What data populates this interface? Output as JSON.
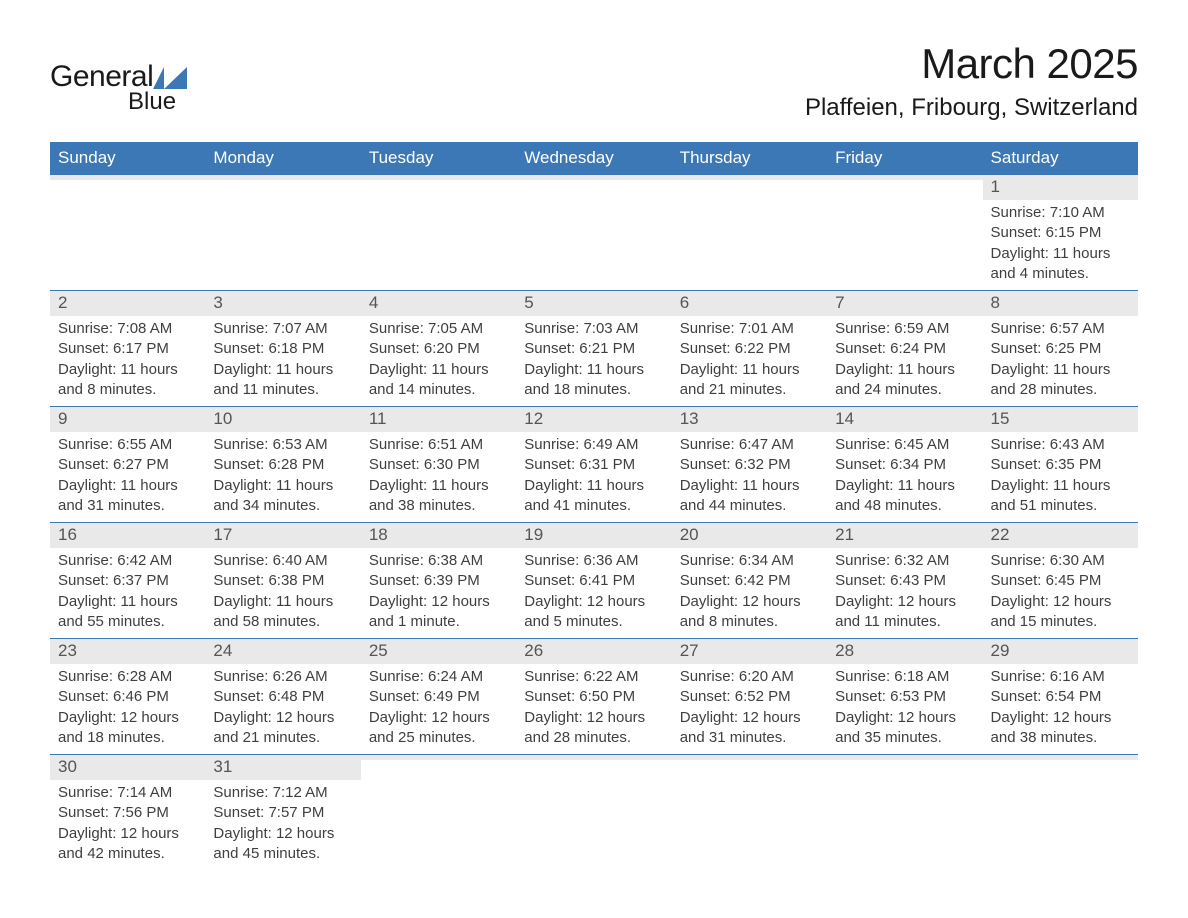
{
  "logo": {
    "word1": "General",
    "word2": "Blue",
    "triangle_color": "#3b78b5"
  },
  "title": "March 2025",
  "location": "Plaffeien, Fribourg, Switzerland",
  "colors": {
    "header_bg": "#3b78b5",
    "header_text": "#ffffff",
    "daynum_bg": "#e9e9e9",
    "body_bg": "#ffffff",
    "text": "#3f3f3f"
  },
  "weekday_labels": [
    "Sunday",
    "Monday",
    "Tuesday",
    "Wednesday",
    "Thursday",
    "Friday",
    "Saturday"
  ],
  "weeks": [
    [
      {
        "n": "",
        "sr": "",
        "ss": "",
        "dl": ""
      },
      {
        "n": "",
        "sr": "",
        "ss": "",
        "dl": ""
      },
      {
        "n": "",
        "sr": "",
        "ss": "",
        "dl": ""
      },
      {
        "n": "",
        "sr": "",
        "ss": "",
        "dl": ""
      },
      {
        "n": "",
        "sr": "",
        "ss": "",
        "dl": ""
      },
      {
        "n": "",
        "sr": "",
        "ss": "",
        "dl": ""
      },
      {
        "n": "1",
        "sr": "Sunrise: 7:10 AM",
        "ss": "Sunset: 6:15 PM",
        "dl": "Daylight: 11 hours and 4 minutes."
      }
    ],
    [
      {
        "n": "2",
        "sr": "Sunrise: 7:08 AM",
        "ss": "Sunset: 6:17 PM",
        "dl": "Daylight: 11 hours and 8 minutes."
      },
      {
        "n": "3",
        "sr": "Sunrise: 7:07 AM",
        "ss": "Sunset: 6:18 PM",
        "dl": "Daylight: 11 hours and 11 minutes."
      },
      {
        "n": "4",
        "sr": "Sunrise: 7:05 AM",
        "ss": "Sunset: 6:20 PM",
        "dl": "Daylight: 11 hours and 14 minutes."
      },
      {
        "n": "5",
        "sr": "Sunrise: 7:03 AM",
        "ss": "Sunset: 6:21 PM",
        "dl": "Daylight: 11 hours and 18 minutes."
      },
      {
        "n": "6",
        "sr": "Sunrise: 7:01 AM",
        "ss": "Sunset: 6:22 PM",
        "dl": "Daylight: 11 hours and 21 minutes."
      },
      {
        "n": "7",
        "sr": "Sunrise: 6:59 AM",
        "ss": "Sunset: 6:24 PM",
        "dl": "Daylight: 11 hours and 24 minutes."
      },
      {
        "n": "8",
        "sr": "Sunrise: 6:57 AM",
        "ss": "Sunset: 6:25 PM",
        "dl": "Daylight: 11 hours and 28 minutes."
      }
    ],
    [
      {
        "n": "9",
        "sr": "Sunrise: 6:55 AM",
        "ss": "Sunset: 6:27 PM",
        "dl": "Daylight: 11 hours and 31 minutes."
      },
      {
        "n": "10",
        "sr": "Sunrise: 6:53 AM",
        "ss": "Sunset: 6:28 PM",
        "dl": "Daylight: 11 hours and 34 minutes."
      },
      {
        "n": "11",
        "sr": "Sunrise: 6:51 AM",
        "ss": "Sunset: 6:30 PM",
        "dl": "Daylight: 11 hours and 38 minutes."
      },
      {
        "n": "12",
        "sr": "Sunrise: 6:49 AM",
        "ss": "Sunset: 6:31 PM",
        "dl": "Daylight: 11 hours and 41 minutes."
      },
      {
        "n": "13",
        "sr": "Sunrise: 6:47 AM",
        "ss": "Sunset: 6:32 PM",
        "dl": "Daylight: 11 hours and 44 minutes."
      },
      {
        "n": "14",
        "sr": "Sunrise: 6:45 AM",
        "ss": "Sunset: 6:34 PM",
        "dl": "Daylight: 11 hours and 48 minutes."
      },
      {
        "n": "15",
        "sr": "Sunrise: 6:43 AM",
        "ss": "Sunset: 6:35 PM",
        "dl": "Daylight: 11 hours and 51 minutes."
      }
    ],
    [
      {
        "n": "16",
        "sr": "Sunrise: 6:42 AM",
        "ss": "Sunset: 6:37 PM",
        "dl": "Daylight: 11 hours and 55 minutes."
      },
      {
        "n": "17",
        "sr": "Sunrise: 6:40 AM",
        "ss": "Sunset: 6:38 PM",
        "dl": "Daylight: 11 hours and 58 minutes."
      },
      {
        "n": "18",
        "sr": "Sunrise: 6:38 AM",
        "ss": "Sunset: 6:39 PM",
        "dl": "Daylight: 12 hours and 1 minute."
      },
      {
        "n": "19",
        "sr": "Sunrise: 6:36 AM",
        "ss": "Sunset: 6:41 PM",
        "dl": "Daylight: 12 hours and 5 minutes."
      },
      {
        "n": "20",
        "sr": "Sunrise: 6:34 AM",
        "ss": "Sunset: 6:42 PM",
        "dl": "Daylight: 12 hours and 8 minutes."
      },
      {
        "n": "21",
        "sr": "Sunrise: 6:32 AM",
        "ss": "Sunset: 6:43 PM",
        "dl": "Daylight: 12 hours and 11 minutes."
      },
      {
        "n": "22",
        "sr": "Sunrise: 6:30 AM",
        "ss": "Sunset: 6:45 PM",
        "dl": "Daylight: 12 hours and 15 minutes."
      }
    ],
    [
      {
        "n": "23",
        "sr": "Sunrise: 6:28 AM",
        "ss": "Sunset: 6:46 PM",
        "dl": "Daylight: 12 hours and 18 minutes."
      },
      {
        "n": "24",
        "sr": "Sunrise: 6:26 AM",
        "ss": "Sunset: 6:48 PM",
        "dl": "Daylight: 12 hours and 21 minutes."
      },
      {
        "n": "25",
        "sr": "Sunrise: 6:24 AM",
        "ss": "Sunset: 6:49 PM",
        "dl": "Daylight: 12 hours and 25 minutes."
      },
      {
        "n": "26",
        "sr": "Sunrise: 6:22 AM",
        "ss": "Sunset: 6:50 PM",
        "dl": "Daylight: 12 hours and 28 minutes."
      },
      {
        "n": "27",
        "sr": "Sunrise: 6:20 AM",
        "ss": "Sunset: 6:52 PM",
        "dl": "Daylight: 12 hours and 31 minutes."
      },
      {
        "n": "28",
        "sr": "Sunrise: 6:18 AM",
        "ss": "Sunset: 6:53 PM",
        "dl": "Daylight: 12 hours and 35 minutes."
      },
      {
        "n": "29",
        "sr": "Sunrise: 6:16 AM",
        "ss": "Sunset: 6:54 PM",
        "dl": "Daylight: 12 hours and 38 minutes."
      }
    ],
    [
      {
        "n": "30",
        "sr": "Sunrise: 7:14 AM",
        "ss": "Sunset: 7:56 PM",
        "dl": "Daylight: 12 hours and 42 minutes."
      },
      {
        "n": "31",
        "sr": "Sunrise: 7:12 AM",
        "ss": "Sunset: 7:57 PM",
        "dl": "Daylight: 12 hours and 45 minutes."
      },
      {
        "n": "",
        "sr": "",
        "ss": "",
        "dl": ""
      },
      {
        "n": "",
        "sr": "",
        "ss": "",
        "dl": ""
      },
      {
        "n": "",
        "sr": "",
        "ss": "",
        "dl": ""
      },
      {
        "n": "",
        "sr": "",
        "ss": "",
        "dl": ""
      },
      {
        "n": "",
        "sr": "",
        "ss": "",
        "dl": ""
      }
    ]
  ]
}
